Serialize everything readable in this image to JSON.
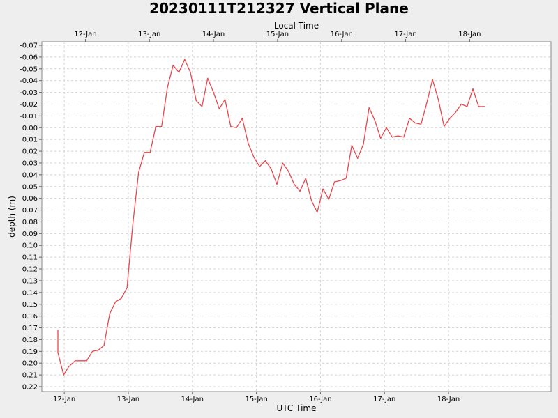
{
  "chart_data": {
    "type": "line",
    "title": "20230111T212327 Vertical Plane",
    "xlabel": "UTC Time",
    "x2label": "Local Time",
    "ylabel": "depth (m)",
    "y_inverted": true,
    "ylim": [
      -0.07,
      0.22
    ],
    "xlim": [
      -0.35,
      7.6
    ],
    "x_unit": "days since 12-Jan 00:00 UTC",
    "x_ticks": [
      {
        "pos": 0,
        "label": "12-Jan"
      },
      {
        "pos": 1,
        "label": "13-Jan"
      },
      {
        "pos": 2,
        "label": "14-Jan"
      },
      {
        "pos": 3,
        "label": "15-Jan"
      },
      {
        "pos": 4,
        "label": "16-Jan"
      },
      {
        "pos": 5,
        "label": "17-Jan"
      },
      {
        "pos": 6,
        "label": "18-Jan"
      }
    ],
    "x2_ticks": [
      {
        "pos": 0.33,
        "label": "12-Jan"
      },
      {
        "pos": 1.33,
        "label": "13-Jan"
      },
      {
        "pos": 2.33,
        "label": "14-Jan"
      },
      {
        "pos": 3.33,
        "label": "15-Jan"
      },
      {
        "pos": 4.33,
        "label": "16-Jan"
      },
      {
        "pos": 5.33,
        "label": "17-Jan"
      },
      {
        "pos": 6.33,
        "label": "18-Jan"
      }
    ],
    "y_ticks": [
      "-0.07",
      "-0.06",
      "-0.05",
      "-0.04",
      "-0.03",
      "-0.02",
      "-0.01",
      "0.00",
      "0.01",
      "0.02",
      "0.03",
      "0.04",
      "0.05",
      "0.06",
      "0.07",
      "0.08",
      "0.09",
      "0.10",
      "0.11",
      "0.12",
      "0.13",
      "0.14",
      "0.15",
      "0.16",
      "0.17",
      "0.18",
      "0.19",
      "0.20",
      "0.21",
      "0.22"
    ],
    "grid": true,
    "series": [
      {
        "color": "#e8474c",
        "points": [
          [
            -0.1,
            0.172
          ],
          [
            -0.1,
            0.191
          ],
          [
            -0.01,
            0.21
          ],
          [
            0.07,
            0.203
          ],
          [
            0.17,
            0.198
          ],
          [
            0.35,
            0.198
          ],
          [
            0.44,
            0.19
          ],
          [
            0.53,
            0.189
          ],
          [
            0.62,
            0.185
          ],
          [
            0.71,
            0.158
          ],
          [
            0.8,
            0.148
          ],
          [
            0.89,
            0.145
          ],
          [
            0.98,
            0.136
          ],
          [
            1.07,
            0.082
          ],
          [
            1.16,
            0.038
          ],
          [
            1.25,
            0.021
          ],
          [
            1.34,
            0.021
          ],
          [
            1.43,
            -0.001
          ],
          [
            1.52,
            -0.001
          ],
          [
            1.61,
            -0.034
          ],
          [
            1.7,
            -0.053
          ],
          [
            1.79,
            -0.047
          ],
          [
            1.88,
            -0.058
          ],
          [
            1.97,
            -0.047
          ],
          [
            2.06,
            -0.023
          ],
          [
            2.15,
            -0.018
          ],
          [
            2.24,
            -0.042
          ],
          [
            2.33,
            -0.03
          ],
          [
            2.42,
            -0.016
          ],
          [
            2.51,
            -0.024
          ],
          [
            2.6,
            -0.001
          ],
          [
            2.69,
            0.0
          ],
          [
            2.78,
            -0.008
          ],
          [
            2.87,
            0.013
          ],
          [
            2.96,
            0.025
          ],
          [
            3.05,
            0.033
          ],
          [
            3.14,
            0.028
          ],
          [
            3.23,
            0.035
          ],
          [
            3.32,
            0.048
          ],
          [
            3.41,
            0.03
          ],
          [
            3.5,
            0.037
          ],
          [
            3.59,
            0.048
          ],
          [
            3.68,
            0.054
          ],
          [
            3.77,
            0.043
          ],
          [
            3.86,
            0.062
          ],
          [
            3.95,
            0.072
          ],
          [
            4.04,
            0.052
          ],
          [
            4.13,
            0.061
          ],
          [
            4.22,
            0.046
          ],
          [
            4.31,
            0.045
          ],
          [
            4.4,
            0.043
          ],
          [
            4.49,
            0.015
          ],
          [
            4.58,
            0.026
          ],
          [
            4.67,
            0.014
          ],
          [
            4.76,
            -0.017
          ],
          [
            4.85,
            -0.006
          ],
          [
            4.94,
            0.009
          ],
          [
            5.03,
            0.0
          ],
          [
            5.12,
            0.008
          ],
          [
            5.21,
            0.007
          ],
          [
            5.3,
            0.008
          ],
          [
            5.39,
            -0.008
          ],
          [
            5.48,
            -0.004
          ],
          [
            5.57,
            -0.003
          ],
          [
            5.66,
            -0.021
          ],
          [
            5.75,
            -0.041
          ],
          [
            5.84,
            -0.024
          ],
          [
            5.93,
            -0.001
          ],
          [
            6.02,
            -0.008
          ],
          [
            6.11,
            -0.013
          ],
          [
            6.2,
            -0.02
          ],
          [
            6.29,
            -0.018
          ],
          [
            6.38,
            -0.033
          ],
          [
            6.47,
            -0.018
          ],
          [
            6.56,
            -0.018
          ]
        ]
      }
    ]
  }
}
